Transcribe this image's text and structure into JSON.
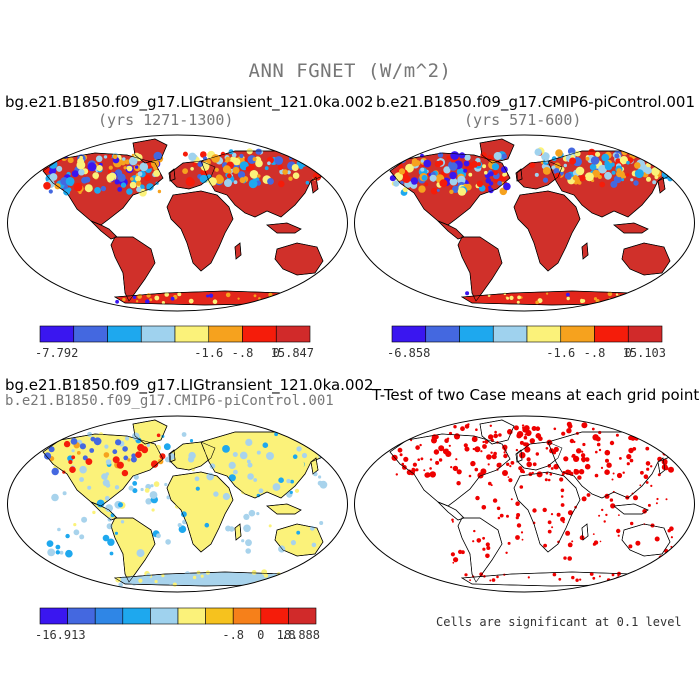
{
  "title": "ANN FGNET (W/m^2)",
  "panels": [
    {
      "title": "bg.e21.B1850.f09_g17.LIGtransient_121.0ka.002",
      "subtitle": "(yrs 1271-1300)",
      "colorbar": {
        "min_label": "-7.792",
        "labels": [
          "-1.6",
          "-.8",
          "0"
        ],
        "max_label": "15.847"
      }
    },
    {
      "title": "b.e21.B1850.f09_g17.CMIP6-piControl.001",
      "subtitle": "(yrs 571-600)",
      "colorbar": {
        "min_label": "-6.858",
        "labels": [
          "-1.6",
          "-.8",
          "0"
        ],
        "max_label": "15.103"
      }
    },
    {
      "title": "bg.e21.B1850.f09_g17.LIGtransient_121.0ka.002",
      "subtitle": "b.e21.B1850.f09_g17.CMIP6-piControl.001",
      "colorbar": {
        "min_label": "-16.913",
        "labels": [
          "-.8",
          "0",
          ".8"
        ],
        "max_label": "18.888"
      }
    },
    {
      "title": "T-Test of two Case means at each grid point",
      "note": "Cells are significant at 0.1 level"
    }
  ],
  "colors": {
    "scale8": [
      "#3a16f0",
      "#4468e0",
      "#1ea8ee",
      "#9fd2ee",
      "#fbf27a",
      "#f6a21e",
      "#f51c0a",
      "#d12a2a"
    ],
    "scale10": [
      "#3a16f0",
      "#4468e0",
      "#2f86e6",
      "#1ea8ee",
      "#9fd2ee",
      "#fbf27a",
      "#f6c21e",
      "#f6801a",
      "#f51c0a",
      "#d12a2a"
    ],
    "land_warm": "#e3261b",
    "land_hot": "#d0302a",
    "diff_yellow": "#fbf27a",
    "diff_blue": "#a8d3ec",
    "signif": "#ee0000"
  }
}
